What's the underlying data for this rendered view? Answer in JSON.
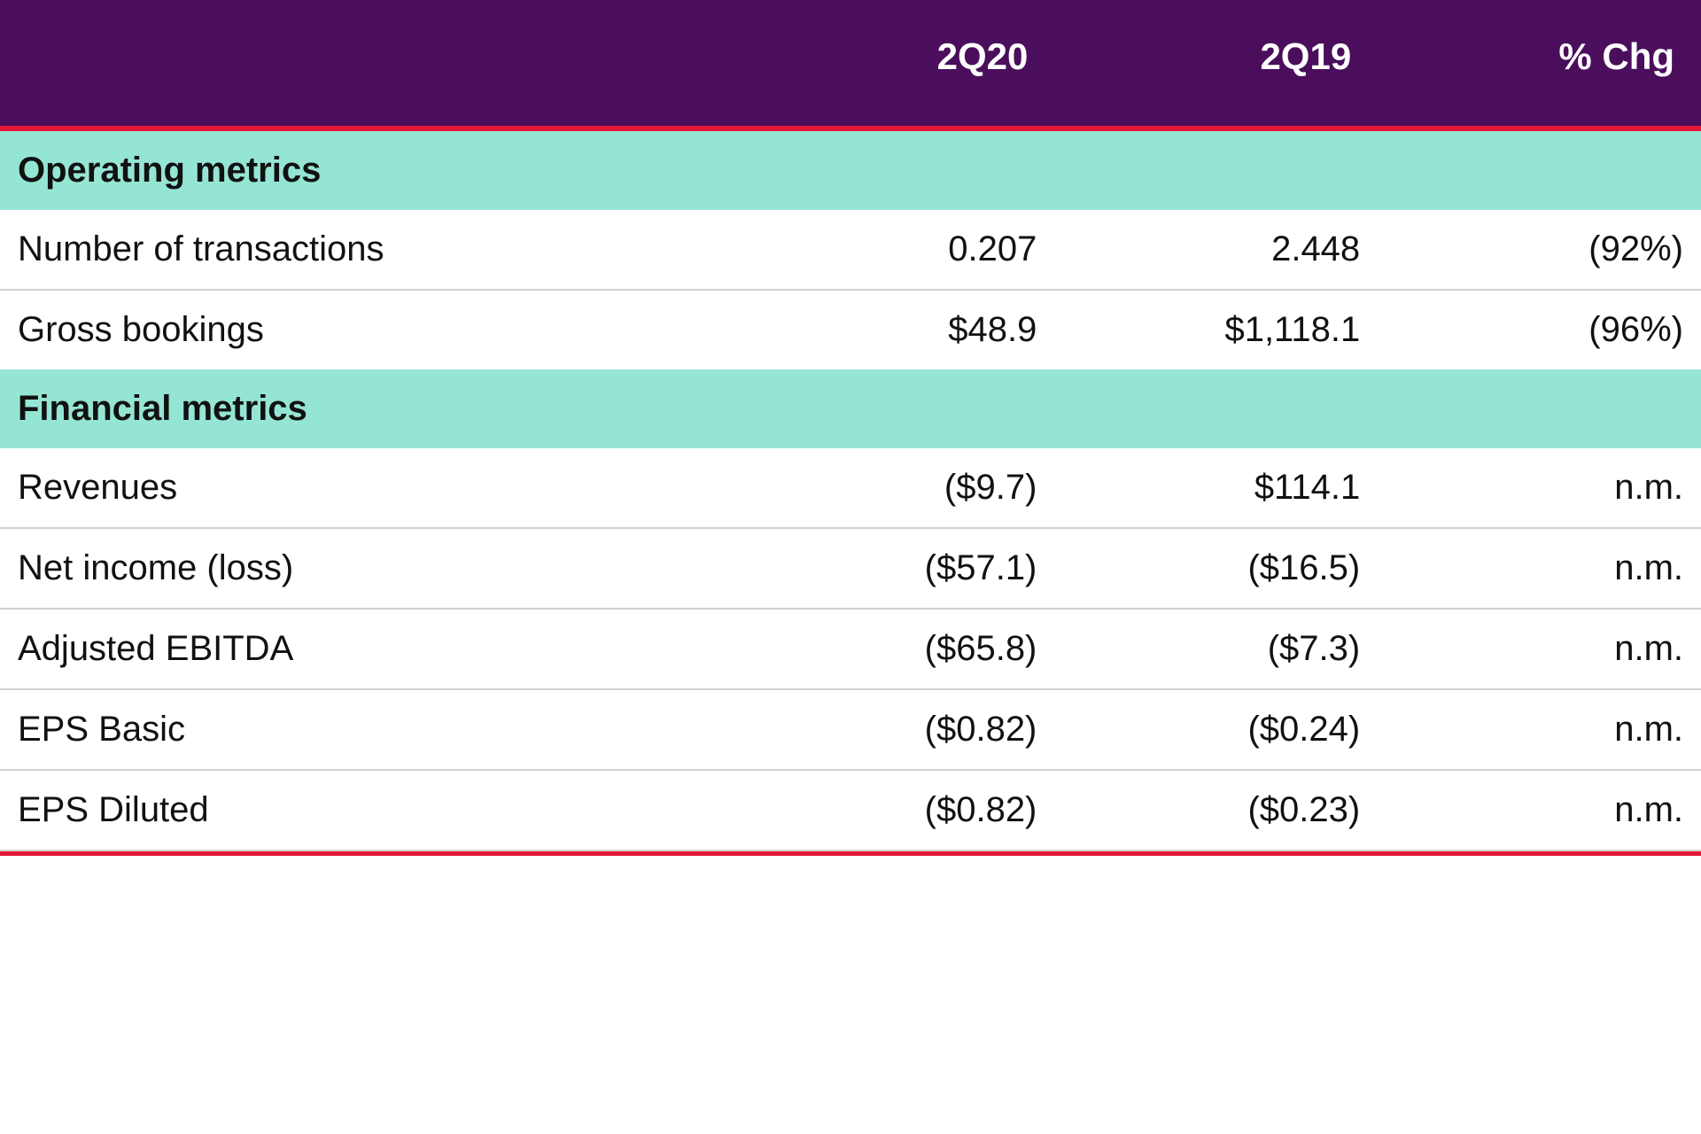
{
  "table": {
    "type": "table",
    "header_bg": "#4a0e5c",
    "header_fg": "#ffffff",
    "section_bg": "#95e5d4",
    "accent_line": "#e31837",
    "row_border": "#d0d0d0",
    "font_family": "Arial",
    "header_fontsize_pt": 32,
    "body_fontsize_pt": 30,
    "columns": [
      "",
      "2Q20",
      "2Q19",
      "% Chg"
    ],
    "col_widths_pct": [
      44,
      18,
      19,
      19
    ],
    "col_align": [
      "left",
      "right",
      "right",
      "right"
    ],
    "sections": [
      {
        "title": "Operating metrics",
        "rows": [
          {
            "label": "Number of transactions",
            "q20": "0.207",
            "q19": "2.448",
            "chg": "(92%)"
          },
          {
            "label": "Gross bookings",
            "q20": "$48.9",
            "q19": "$1,118.1",
            "chg": "(96%)"
          }
        ]
      },
      {
        "title": "Financial metrics",
        "rows": [
          {
            "label": "Revenues",
            "q20": "($9.7)",
            "q19": "$114.1",
            "chg": "n.m."
          },
          {
            "label": "Net income (loss)",
            "q20": "($57.1)",
            "q19": "($16.5)",
            "chg": "n.m."
          },
          {
            "label": "Adjusted EBITDA",
            "q20": "($65.8)",
            "q19": "($7.3)",
            "chg": "n.m."
          },
          {
            "label": "EPS Basic",
            "q20": "($0.82)",
            "q19": "($0.24)",
            "chg": "n.m."
          },
          {
            "label": "EPS Diluted",
            "q20": "($0.82)",
            "q19": "($0.23)",
            "chg": "n.m."
          }
        ]
      }
    ]
  }
}
